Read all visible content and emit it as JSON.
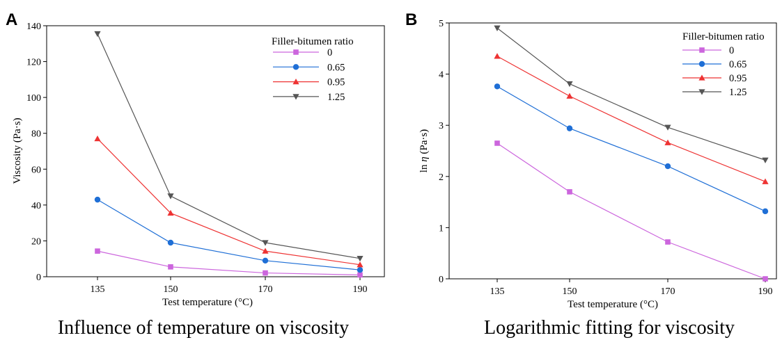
{
  "chart_data": [
    {
      "type": "line",
      "panel_label": "A",
      "caption": "Influence of temperature on viscosity",
      "xlabel": "Test temperature (°C)",
      "ylabel": "Viscosity (Pa·s)",
      "ylim": [
        0,
        140
      ],
      "yticks": [
        "0",
        "20",
        "40",
        "60",
        "80",
        "100",
        "120",
        "140"
      ],
      "categories": [
        "135",
        "150",
        "170",
        "190"
      ],
      "legend_title": "Filler-bitumen ratio",
      "legend_position": "top-right",
      "grid": false,
      "series": [
        {
          "name": "0",
          "color": "#cc66dd",
          "marker": "square",
          "values": [
            14.3,
            5.5,
            2.1,
            1.0
          ]
        },
        {
          "name": "0.65",
          "color": "#1f6fd6",
          "marker": "circle",
          "values": [
            43.0,
            19.0,
            9.0,
            3.8
          ]
        },
        {
          "name": "0.95",
          "color": "#ee3333",
          "marker": "triangle-up",
          "values": [
            77.0,
            35.5,
            14.3,
            6.7
          ]
        },
        {
          "name": "1.25",
          "color": "#555555",
          "marker": "triangle-down",
          "values": [
            135.5,
            45.0,
            19.0,
            10.2
          ]
        }
      ]
    },
    {
      "type": "line",
      "panel_label": "B",
      "caption": "Logarithmic fitting for viscosity",
      "xlabel": "Test temperature (°C)",
      "ylabel_prefix": "ln ",
      "ylabel_symbol": "η",
      "ylabel_suffix": " (Pa·s)",
      "ylim": [
        0,
        5
      ],
      "yticks": [
        "0",
        "1",
        "2",
        "3",
        "4",
        "5"
      ],
      "categories": [
        "135",
        "150",
        "170",
        "190"
      ],
      "legend_title": "Filler-bitumen ratio",
      "legend_position": "top-right",
      "grid": false,
      "series": [
        {
          "name": "0",
          "color": "#cc66dd",
          "marker": "square",
          "values": [
            2.65,
            1.7,
            0.72,
            0.0
          ]
        },
        {
          "name": "0.65",
          "color": "#1f6fd6",
          "marker": "circle",
          "values": [
            3.76,
            2.94,
            2.2,
            1.32
          ]
        },
        {
          "name": "0.95",
          "color": "#ee3333",
          "marker": "triangle-up",
          "values": [
            4.35,
            3.57,
            2.66,
            1.9
          ]
        },
        {
          "name": "1.25",
          "color": "#555555",
          "marker": "triangle-down",
          "values": [
            4.9,
            3.81,
            2.96,
            2.32
          ]
        }
      ]
    }
  ]
}
